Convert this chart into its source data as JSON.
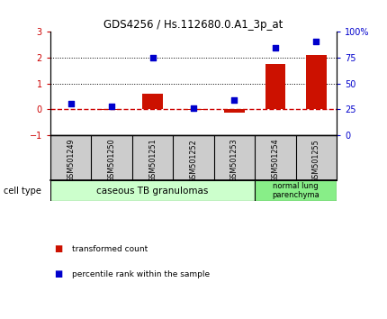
{
  "title": "GDS4256 / Hs.112680.0.A1_3p_at",
  "samples": [
    "GSM501249",
    "GSM501250",
    "GSM501251",
    "GSM501252",
    "GSM501253",
    "GSM501254",
    "GSM501255"
  ],
  "transformed_count": [
    0.0,
    -0.02,
    0.6,
    -0.02,
    -0.12,
    1.75,
    2.1
  ],
  "percentile_rank_pct": [
    30,
    28,
    75,
    26,
    34,
    85,
    91
  ],
  "left_ylim": [
    -1,
    3
  ],
  "left_yticks": [
    -1,
    0,
    1,
    2,
    3
  ],
  "right_ylim": [
    0,
    100
  ],
  "right_yticks": [
    0,
    25,
    50,
    75,
    100
  ],
  "right_yticklabels": [
    "0",
    "25",
    "50",
    "75",
    "100%"
  ],
  "hline_zero_color": "#cc0000",
  "hline_dotted_color": "black",
  "bar_color": "#cc1100",
  "scatter_color": "#0000cc",
  "group1_label": "caseous TB granulomas",
  "group1_color": "#ccffcc",
  "group1_indices": [
    0,
    1,
    2,
    3,
    4
  ],
  "group2_label": "normal lung\nparenchyma",
  "group2_color": "#88ee88",
  "group2_indices": [
    5,
    6
  ],
  "cell_type_label": "cell type",
  "legend_bar_label": "transformed count",
  "legend_scatter_label": "percentile rank within the sample",
  "background_color": "#ffffff",
  "label_bg_color": "#cccccc"
}
